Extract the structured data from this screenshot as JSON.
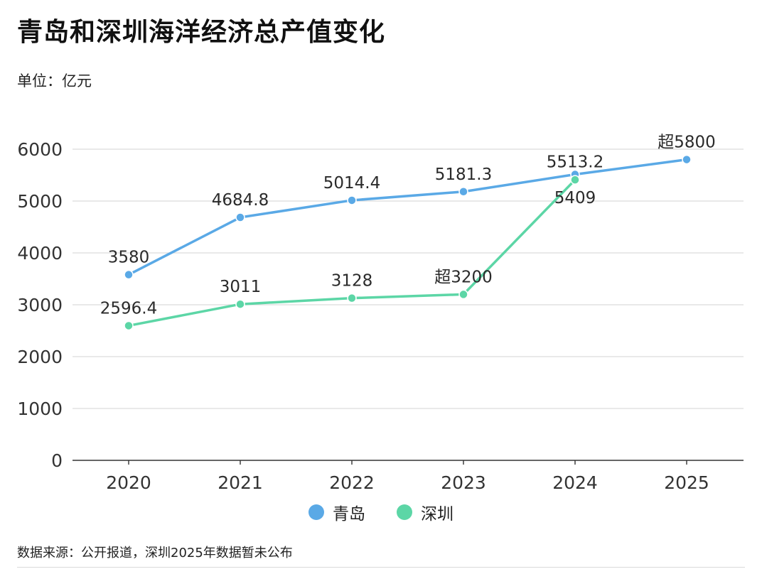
{
  "header": {
    "title": "青岛和深圳海洋经济总产值变化",
    "unit": "单位：亿元"
  },
  "footer": {
    "source": "数据来源：公开报道，深圳2025年数据暂未公布"
  },
  "colors": {
    "qingdao": "#5aa9e6",
    "shenzhen": "#5cd6a6",
    "grid": "#dcdcdc",
    "axis": "#333333"
  },
  "chart_data": {
    "type": "line",
    "x": [
      "2020",
      "2021",
      "2022",
      "2023",
      "2024",
      "2025"
    ],
    "ylim": [
      0,
      6000
    ],
    "yticks": [
      "0",
      "1000",
      "2000",
      "3000",
      "4000",
      "5000",
      "6000"
    ],
    "grid": true,
    "legend_position": "bottom-center",
    "series": [
      {
        "name": "青岛",
        "values": [
          3580,
          4684.8,
          5014.4,
          5181.3,
          5513.2,
          5800
        ],
        "labels": [
          "3580",
          "4684.8",
          "5014.4",
          "5181.3",
          "5513.2",
          "超5800"
        ]
      },
      {
        "name": "深圳",
        "values": [
          2596.4,
          3011,
          3128,
          3200,
          5409,
          null
        ],
        "labels": [
          "2596.4",
          "3011",
          "3128",
          "超3200",
          "5409",
          ""
        ]
      }
    ]
  }
}
